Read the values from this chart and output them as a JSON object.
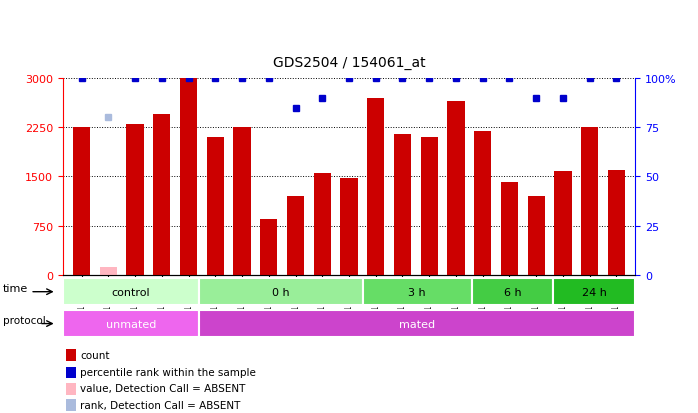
{
  "title": "GDS2504 / 154061_at",
  "samples": [
    "GSM112931",
    "GSM112935",
    "GSM112942",
    "GSM112943",
    "GSM112945",
    "GSM112946",
    "GSM112947",
    "GSM112948",
    "GSM112949",
    "GSM112950",
    "GSM112952",
    "GSM112962",
    "GSM112963",
    "GSM112964",
    "GSM112965",
    "GSM112967",
    "GSM112968",
    "GSM112970",
    "GSM112971",
    "GSM112972",
    "GSM113345"
  ],
  "bar_values": [
    2250,
    120,
    2300,
    2450,
    3000,
    2100,
    2250,
    850,
    1200,
    1550,
    1480,
    2700,
    2150,
    2100,
    2650,
    2200,
    1420,
    1200,
    1580,
    2250,
    1600
  ],
  "absent_indices": [
    1
  ],
  "blue_values": [
    100,
    80,
    100,
    100,
    100,
    100,
    100,
    100,
    85,
    90,
    100,
    100,
    100,
    100,
    100,
    100,
    100,
    90,
    90,
    100,
    100
  ],
  "absent_rank_indices": [
    1
  ],
  "ylim_left": [
    0,
    3000
  ],
  "ylim_right": [
    0,
    100
  ],
  "yticks_left": [
    0,
    750,
    1500,
    2250,
    3000
  ],
  "yticks_right": [
    0,
    25,
    50,
    75,
    100
  ],
  "bar_color": "#CC0000",
  "absent_bar_color": "#FFB6C1",
  "blue_color": "#0000CC",
  "absent_blue_color": "#AABBDD",
  "time_groups": [
    {
      "label": "control",
      "start": 0,
      "end": 4,
      "color": "#CCFFCC"
    },
    {
      "label": "0 h",
      "start": 5,
      "end": 10,
      "color": "#99EE99"
    },
    {
      "label": "3 h",
      "start": 11,
      "end": 14,
      "color": "#66DD66"
    },
    {
      "label": "6 h",
      "start": 15,
      "end": 17,
      "color": "#44CC44"
    },
    {
      "label": "24 h",
      "start": 18,
      "end": 20,
      "color": "#22BB22"
    }
  ],
  "protocol_groups": [
    {
      "label": "unmated",
      "start": 0,
      "end": 4,
      "color": "#EE66EE"
    },
    {
      "label": "mated",
      "start": 5,
      "end": 20,
      "color": "#CC44CC"
    }
  ],
  "legend_labels": [
    "count",
    "percentile rank within the sample",
    "value, Detection Call = ABSENT",
    "rank, Detection Call = ABSENT"
  ],
  "legend_colors": [
    "#CC0000",
    "#0000CC",
    "#FFB6C1",
    "#AABBDD"
  ]
}
